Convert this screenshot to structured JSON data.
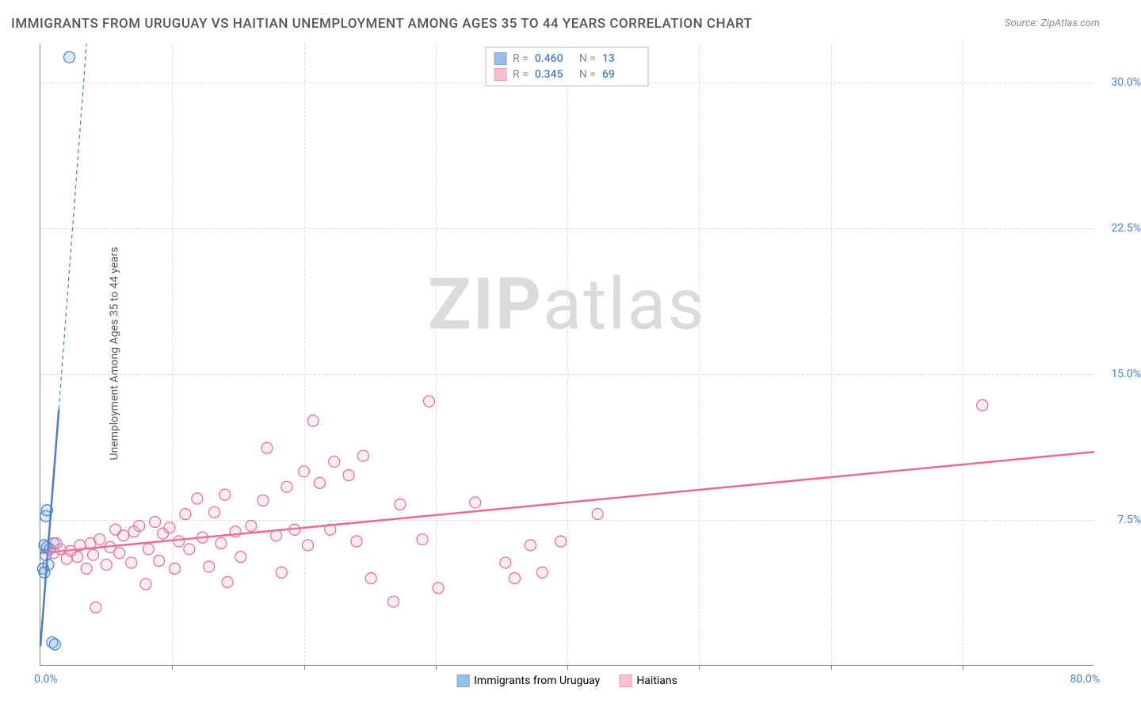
{
  "chart": {
    "type": "scatter",
    "title": "IMMIGRANTS FROM URUGUAY VS HAITIAN UNEMPLOYMENT AMONG AGES 35 TO 44 YEARS CORRELATION CHART",
    "source_label": "Source:",
    "source_value": "ZipAtlas.com",
    "ylabel": "Unemployment Among Ages 35 to 44 years",
    "watermark_bold": "ZIP",
    "watermark_rest": "atlas",
    "xlim": [
      0,
      80
    ],
    "ylim": [
      0,
      32
    ],
    "x_origin_label": "0.0%",
    "x_max_label": "80.0%",
    "y_ticks": [
      {
        "value": 7.5,
        "label": "7.5%"
      },
      {
        "value": 15.0,
        "label": "15.0%"
      },
      {
        "value": 22.5,
        "label": "22.5%"
      },
      {
        "value": 30.0,
        "label": "30.0%"
      }
    ],
    "x_tick_step": 10,
    "tick_color": "#4a7ec9",
    "grid_color": "#dddddd",
    "background_color": "#ffffff",
    "title_color": "#555555",
    "title_fontsize": 17,
    "label_fontsize": 14,
    "marker_radius": 7,
    "marker_stroke_width": 1.2,
    "marker_fill_opacity": 0.22,
    "line_width_solid": 2.5,
    "line_width_dashed": 1.2,
    "series": [
      {
        "name": "Immigrants from Uruguay",
        "color": "#6fa3e0",
        "stroke": "#4a7ec9",
        "r_value": "0.460",
        "n_value": "13",
        "trend": {
          "x1": 0,
          "y1": 1.0,
          "x2": 3.5,
          "y2": 32,
          "dashed_after_x": 1.4,
          "dashed_after_y": 13.2
        },
        "points": [
          {
            "x": 0.3,
            "y": 6.2
          },
          {
            "x": 0.4,
            "y": 5.7
          },
          {
            "x": 0.5,
            "y": 6.1
          },
          {
            "x": 0.6,
            "y": 5.2
          },
          {
            "x": 0.2,
            "y": 5.0
          },
          {
            "x": 0.4,
            "y": 7.7
          },
          {
            "x": 0.5,
            "y": 8.0
          },
          {
            "x": 1.0,
            "y": 6.3
          },
          {
            "x": 0.3,
            "y": 4.8
          },
          {
            "x": 0.9,
            "y": 1.2
          },
          {
            "x": 1.1,
            "y": 1.1
          },
          {
            "x": 0.7,
            "y": 6.0
          },
          {
            "x": 2.2,
            "y": 31.3
          }
        ]
      },
      {
        "name": "Haitians",
        "color": "#f5a7bd",
        "stroke": "#e86b92",
        "r_value": "0.345",
        "n_value": "69",
        "trend": {
          "x1": 0,
          "y1": 5.8,
          "x2": 80,
          "y2": 11.0
        },
        "points": [
          {
            "x": 1.0,
            "y": 5.8
          },
          {
            "x": 1.5,
            "y": 6.0
          },
          {
            "x": 2.0,
            "y": 5.5
          },
          {
            "x": 2.3,
            "y": 5.9
          },
          {
            "x": 2.8,
            "y": 5.6
          },
          {
            "x": 3.0,
            "y": 6.2
          },
          {
            "x": 3.5,
            "y": 5.0
          },
          {
            "x": 3.8,
            "y": 6.3
          },
          {
            "x": 4.0,
            "y": 5.7
          },
          {
            "x": 4.2,
            "y": 3.0
          },
          {
            "x": 4.5,
            "y": 6.5
          },
          {
            "x": 5.0,
            "y": 5.2
          },
          {
            "x": 5.3,
            "y": 6.1
          },
          {
            "x": 5.7,
            "y": 7.0
          },
          {
            "x": 6.0,
            "y": 5.8
          },
          {
            "x": 6.3,
            "y": 6.7
          },
          {
            "x": 6.9,
            "y": 5.3
          },
          {
            "x": 7.1,
            "y": 6.9
          },
          {
            "x": 7.5,
            "y": 7.2
          },
          {
            "x": 8.0,
            "y": 4.2
          },
          {
            "x": 8.2,
            "y": 6.0
          },
          {
            "x": 8.7,
            "y": 7.4
          },
          {
            "x": 9.0,
            "y": 5.4
          },
          {
            "x": 9.3,
            "y": 6.8
          },
          {
            "x": 9.8,
            "y": 7.1
          },
          {
            "x": 10.2,
            "y": 5.0
          },
          {
            "x": 10.5,
            "y": 6.4
          },
          {
            "x": 11.0,
            "y": 7.8
          },
          {
            "x": 11.3,
            "y": 6.0
          },
          {
            "x": 11.9,
            "y": 8.6
          },
          {
            "x": 12.3,
            "y": 6.6
          },
          {
            "x": 12.8,
            "y": 5.1
          },
          {
            "x": 13.2,
            "y": 7.9
          },
          {
            "x": 13.7,
            "y": 6.3
          },
          {
            "x": 14.0,
            "y": 8.8
          },
          {
            "x": 14.2,
            "y": 4.3
          },
          {
            "x": 14.8,
            "y": 6.9
          },
          {
            "x": 15.2,
            "y": 5.6
          },
          {
            "x": 16.0,
            "y": 7.2
          },
          {
            "x": 16.9,
            "y": 8.5
          },
          {
            "x": 17.2,
            "y": 11.2
          },
          {
            "x": 17.9,
            "y": 6.7
          },
          {
            "x": 18.3,
            "y": 4.8
          },
          {
            "x": 18.7,
            "y": 9.2
          },
          {
            "x": 19.3,
            "y": 7.0
          },
          {
            "x": 20.0,
            "y": 10.0
          },
          {
            "x": 20.3,
            "y": 6.2
          },
          {
            "x": 20.7,
            "y": 12.6
          },
          {
            "x": 21.2,
            "y": 9.4
          },
          {
            "x": 22.0,
            "y": 7.0
          },
          {
            "x": 22.3,
            "y": 10.5
          },
          {
            "x": 23.4,
            "y": 9.8
          },
          {
            "x": 24.0,
            "y": 6.4
          },
          {
            "x": 24.5,
            "y": 10.8
          },
          {
            "x": 25.1,
            "y": 4.5
          },
          {
            "x": 26.8,
            "y": 3.3
          },
          {
            "x": 27.3,
            "y": 8.3
          },
          {
            "x": 29.0,
            "y": 6.5
          },
          {
            "x": 29.5,
            "y": 13.6
          },
          {
            "x": 30.2,
            "y": 4.0
          },
          {
            "x": 33.0,
            "y": 8.4
          },
          {
            "x": 35.3,
            "y": 5.3
          },
          {
            "x": 36.0,
            "y": 4.5
          },
          {
            "x": 37.2,
            "y": 6.2
          },
          {
            "x": 38.1,
            "y": 4.8
          },
          {
            "x": 39.5,
            "y": 6.4
          },
          {
            "x": 42.3,
            "y": 7.8
          },
          {
            "x": 71.5,
            "y": 13.4
          },
          {
            "x": 1.2,
            "y": 6.3
          }
        ]
      }
    ],
    "legend_bottom": [
      {
        "label": "Immigrants from Uruguay",
        "color": "#6fa3e0",
        "stroke": "#4a7ec9"
      },
      {
        "label": "Haitians",
        "color": "#f5a7bd",
        "stroke": "#e86b92"
      }
    ]
  }
}
